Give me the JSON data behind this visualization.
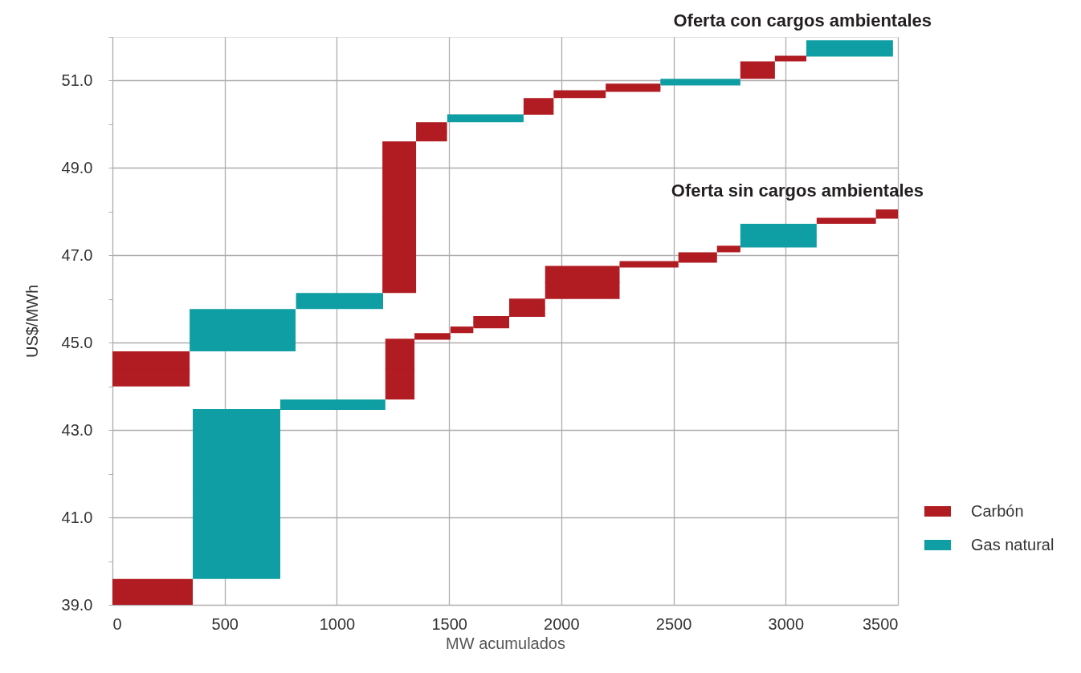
{
  "chart_data": {
    "type": "bar",
    "xlabel": "MW acumulados",
    "ylabel": "US$/MWh",
    "annotations": [
      "Oferta con  cargos ambientales",
      "Oferta sin  cargos ambientales"
    ],
    "xlim": [
      0,
      3500
    ],
    "xticks": [
      0,
      500,
      1000,
      1500,
      2000,
      2500,
      3000,
      3500
    ],
    "ylim": [
      39,
      52
    ],
    "yticks": [
      {
        "value": 39,
        "label": "39.0"
      },
      {
        "value": 40,
        "label": null
      },
      {
        "value": 41,
        "label": "41.0"
      },
      {
        "value": 42,
        "label": null
      },
      {
        "value": 43,
        "label": "43.0"
      },
      {
        "value": 44,
        "label": null
      },
      {
        "value": 45,
        "label": "45.0"
      },
      {
        "value": 46,
        "label": null
      },
      {
        "value": 47,
        "label": "47.0"
      },
      {
        "value": 48,
        "label": null
      },
      {
        "value": 49,
        "label": "49.0"
      },
      {
        "value": 50,
        "label": null
      },
      {
        "value": 51,
        "label": "51.0"
      },
      {
        "value": 52,
        "label": null
      }
    ],
    "grid": true,
    "legend": "right",
    "series": [
      {
        "name": "Carbón",
        "color": "#b01c22",
        "x": [
          172,
          179,
          1278,
          1281,
          1422,
          1426,
          1557,
          1688,
          1848,
          1899,
          2082,
          2094,
          2320,
          2391,
          2608,
          2746,
          2875,
          3022,
          3270,
          3451
        ],
        "xerrors": [
          172,
          179,
          75,
          65,
          69,
          80,
          51,
          80,
          80,
          67,
          116,
          166,
          122,
          131,
          86,
          52,
          77,
          70,
          132,
          49
        ],
        "base": [
          44.0,
          39.0,
          46.14,
          43.7,
          49.61,
          45.07,
          45.22,
          45.33,
          45.59,
          50.22,
          50.6,
          46.0,
          50.74,
          46.72,
          46.83,
          47.07,
          51.04,
          51.44,
          47.72,
          47.84
        ],
        "values": [
          0.8,
          0.59,
          3.47,
          1.39,
          0.44,
          0.15,
          0.15,
          0.28,
          0.42,
          0.38,
          0.18,
          0.76,
          0.19,
          0.15,
          0.24,
          0.15,
          0.4,
          0.13,
          0.14,
          0.21
        ]
      },
      {
        "name": "Gas natural",
        "color": "#0e9ea3",
        "x": [
          553,
          580,
          982,
          1012,
          1662,
          2620,
          2968,
          3285
        ],
        "xerrors": [
          195,
          236,
          234,
          194,
          170,
          178,
          170,
          193
        ],
        "base": [
          39.59,
          44.8,
          43.46,
          45.77,
          50.05,
          50.89,
          47.18,
          51.55
        ],
        "values": [
          3.89,
          0.97,
          0.24,
          0.37,
          0.18,
          0.15,
          0.54,
          0.37
        ]
      }
    ]
  }
}
